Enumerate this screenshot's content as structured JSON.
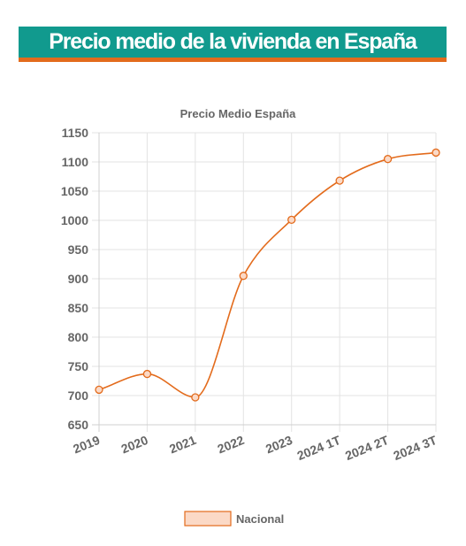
{
  "header": {
    "title": "Precio medio de la vivienda en España"
  },
  "colors": {
    "banner": "#119a8e",
    "accent": "#e36b1c",
    "line": "#e36b1c",
    "legend_fill": "#fbd9c6"
  },
  "chart_data": {
    "type": "line",
    "title": "Precio Medio España",
    "categories": [
      "2019",
      "2020",
      "2021",
      "2022",
      "2023",
      "2024 1T",
      "2024 2T",
      "2024 3T"
    ],
    "series": [
      {
        "name": "Nacional",
        "values": [
          710,
          737,
          697,
          905,
          1001,
          1068,
          1105,
          1116
        ]
      }
    ],
    "ylim": [
      650,
      1150
    ],
    "yticks": [
      650,
      700,
      750,
      800,
      850,
      900,
      950,
      1000,
      1050,
      1100,
      1150
    ],
    "grid": true,
    "legend": "bottom"
  }
}
